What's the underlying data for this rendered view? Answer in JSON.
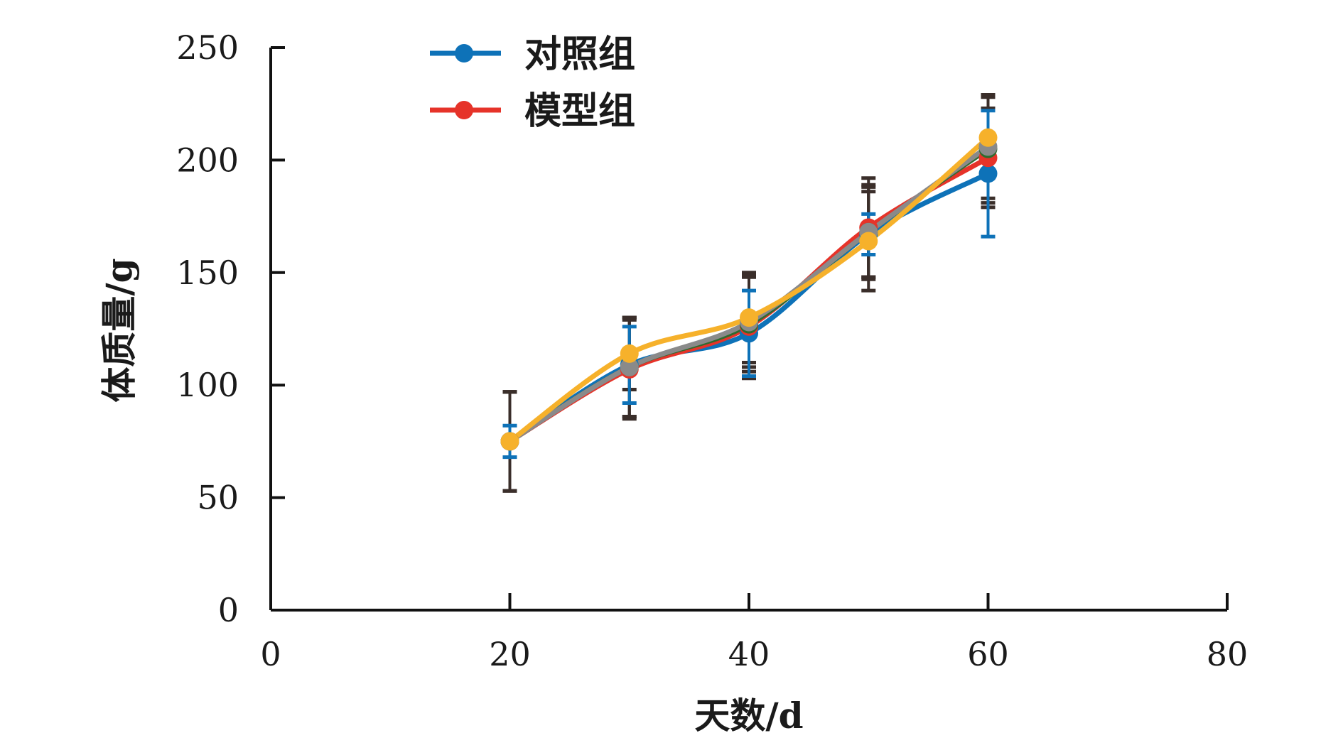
{
  "chart_data": {
    "type": "line",
    "title": "",
    "xlabel": "天数/d",
    "ylabel": "体质量/g",
    "xlim": [
      0,
      80
    ],
    "ylim": [
      0,
      250
    ],
    "xticks": [
      0,
      20,
      40,
      60,
      80
    ],
    "yticks": [
      0,
      50,
      100,
      150,
      200,
      250
    ],
    "grid": false,
    "legend_position": "top-left",
    "legend": [
      "对照组",
      "模型组"
    ],
    "x": [
      20,
      30,
      40,
      50,
      60
    ],
    "series": [
      {
        "name": "对照组",
        "color": "#0e72b8",
        "values": [
          75,
          109,
          123,
          167,
          194
        ],
        "errors": [
          7,
          17,
          19,
          9,
          28
        ],
        "error_color": "#0e72b8"
      },
      {
        "name": "模型组",
        "color": "#e63329",
        "values": [
          75,
          107,
          126,
          170,
          201
        ],
        "errors": [
          22,
          22,
          23,
          22,
          22
        ],
        "error_color": "#3a2e2a"
      },
      {
        "name": "",
        "color": "#2e6b2e",
        "values": [
          75,
          108,
          127,
          168,
          205
        ],
        "errors": [
          22,
          22,
          21,
          21,
          24
        ],
        "error_color": "#3a2e2a"
      },
      {
        "name": "",
        "color": "#8a8a8a",
        "values": [
          75,
          108,
          128,
          168,
          206
        ],
        "errors": [
          22,
          22,
          20,
          20,
          23
        ],
        "error_color": "#3a2e2a"
      },
      {
        "name": "",
        "color": "#f6b12b",
        "values": [
          75,
          114,
          130,
          164,
          210
        ],
        "errors": [
          22,
          16,
          20,
          22,
          18
        ],
        "error_color": "#3a2e2a"
      }
    ]
  }
}
